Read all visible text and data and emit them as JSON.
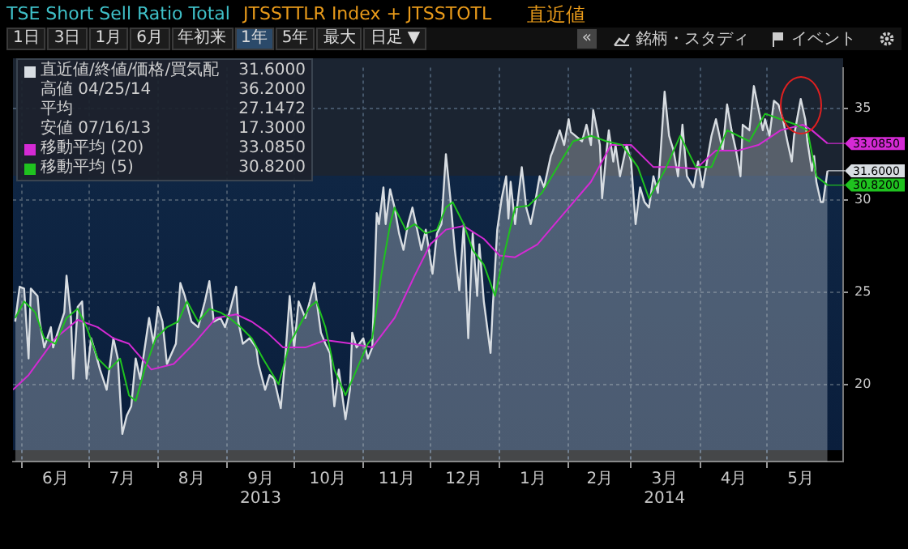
{
  "chart_data": {
    "type": "area",
    "title": "TSE Short Sell Ratio Total",
    "subtitle": "JTSSTTLR Index + JTSSTOTL",
    "annotations": [
      {
        "text": "31.6000",
        "x": "2014-05-28",
        "y": 31.6
      },
      {
        "text": "33.0850",
        "x": "2014-05-28",
        "y": 33.085
      },
      {
        "text": "30.8200",
        "x": "2014-05-28",
        "y": 30.82
      },
      "直近値",
      "高値 04/25/14 36.2000",
      "平均 27.1472",
      "安値 07/16/13 17.3000",
      "1日",
      "3日",
      "1月",
      "6月",
      "年初来",
      "1年",
      "5年",
      "最大",
      "日足 ▼",
      "«",
      "銘柄・スタディ",
      "イベント"
    ],
    "series": [
      {
        "name": "直近値/終値/価格/買気配",
        "color": "#d8dde2",
        "x": [
          "2013-05-29",
          "2013-05-31",
          "2013-06-02",
          "2013-06-04",
          "2013-06-05",
          "2013-06-08",
          "2013-06-09",
          "2013-06-11",
          "2013-06-14",
          "2013-06-15",
          "2013-06-17",
          "2013-06-20",
          "2013-06-21",
          "2013-06-23",
          "2013-06-24",
          "2013-06-26",
          "2013-06-28",
          "2013-06-30",
          "2013-07-02",
          "2013-07-04",
          "2013-07-06",
          "2013-07-09",
          "2013-07-12",
          "2013-07-14",
          "2013-07-16",
          "2013-07-18",
          "2013-07-20",
          "2013-07-22",
          "2013-07-24",
          "2013-07-25",
          "2013-07-28",
          "2013-07-30",
          "2013-08-01",
          "2013-08-03",
          "2013-08-05",
          "2013-08-09",
          "2013-08-11",
          "2013-08-13",
          "2013-08-16",
          "2013-08-19",
          "2013-08-22",
          "2013-08-24",
          "2013-08-26",
          "2013-08-29",
          "2013-08-31",
          "2013-09-02",
          "2013-09-05",
          "2013-09-06",
          "2013-09-08",
          "2013-09-11",
          "2013-09-14",
          "2013-09-15",
          "2013-09-18",
          "2013-09-20",
          "2013-09-22",
          "2013-09-25",
          "2013-09-27",
          "2013-09-29",
          "2013-10-01",
          "2013-10-03",
          "2013-10-06",
          "2013-10-08",
          "2013-10-10",
          "2013-10-13",
          "2013-10-15",
          "2013-10-17",
          "2013-10-19",
          "2013-10-21",
          "2013-10-24",
          "2013-10-26",
          "2013-10-27",
          "2013-10-29",
          "2013-11-01",
          "2013-11-03",
          "2013-11-05",
          "2013-11-07",
          "2013-11-08",
          "2013-11-10",
          "2013-11-11",
          "2013-11-13",
          "2013-11-15",
          "2013-11-17",
          "2013-11-19",
          "2013-11-21",
          "2013-11-23",
          "2013-11-26",
          "2013-11-27",
          "2013-11-29",
          "2013-12-02",
          "2013-12-04",
          "2013-12-06",
          "2013-12-08",
          "2013-12-10",
          "2013-12-12",
          "2013-12-14",
          "2013-12-16",
          "2013-12-18",
          "2013-12-20",
          "2013-12-22",
          "2013-12-23",
          "2013-12-25",
          "2013-12-28",
          "2013-12-29",
          "2013-12-31",
          "2014-01-02",
          "2014-01-04",
          "2014-01-05",
          "2014-01-06",
          "2014-01-08",
          "2014-01-11",
          "2014-01-13",
          "2014-01-15",
          "2014-01-17",
          "2014-01-19",
          "2014-01-21",
          "2014-01-24",
          "2014-01-25",
          "2014-01-28",
          "2014-01-30",
          "2014-02-01",
          "2014-02-02",
          "2014-02-04",
          "2014-02-07",
          "2014-02-09",
          "2014-02-11",
          "2014-02-12",
          "2014-02-15",
          "2014-02-16",
          "2014-02-18",
          "2014-02-19",
          "2014-02-21",
          "2014-02-22",
          "2014-02-24",
          "2014-02-27",
          "2014-03-01",
          "2014-03-03",
          "2014-03-05",
          "2014-03-07",
          "2014-03-09",
          "2014-03-11",
          "2014-03-13",
          "2014-03-16",
          "2014-03-18",
          "2014-03-20",
          "2014-03-22",
          "2014-03-24",
          "2014-03-26",
          "2014-03-29",
          "2014-03-31",
          "2014-04-02",
          "2014-04-04",
          "2014-04-06",
          "2014-04-08",
          "2014-04-11",
          "2014-04-13",
          "2014-04-15",
          "2014-04-17",
          "2014-04-19",
          "2014-04-20",
          "2014-04-23",
          "2014-04-25",
          "2014-04-29",
          "2014-04-30",
          "2014-05-02",
          "2014-05-04",
          "2014-05-06",
          "2014-05-08",
          "2014-05-10",
          "2014-05-12",
          "2014-05-13",
          "2014-05-16",
          "2014-05-18",
          "2014-05-19",
          "2014-05-21",
          "2014-05-22",
          "2014-05-23",
          "2014-05-25",
          "2014-05-26",
          "2014-05-28"
        ],
        "values": [
          23.4,
          25.3,
          25.2,
          21.4,
          25.2,
          24.8,
          23.4,
          22.0,
          23.1,
          22.0,
          22.8,
          23.9,
          25.9,
          23.6,
          20.3,
          24.2,
          24.5,
          20.3,
          22.5,
          21.7,
          20.8,
          19.7,
          22.5,
          21.4,
          17.3,
          18.3,
          18.8,
          21.4,
          20.3,
          21.1,
          23.6,
          22.2,
          24.2,
          23.4,
          21.1,
          22.2,
          25.5,
          24.8,
          23.4,
          23.1,
          24.5,
          25.6,
          23.4,
          23.6,
          23.1,
          23.9,
          25.3,
          23.4,
          22.2,
          22.5,
          22.0,
          21.1,
          19.7,
          20.5,
          20.3,
          18.7,
          21.4,
          24.8,
          22.0,
          24.5,
          23.6,
          24.5,
          25.5,
          22.8,
          22.2,
          21.7,
          18.8,
          20.8,
          18.1,
          19.7,
          22.8,
          22.0,
          22.5,
          21.4,
          22.0,
          29.3,
          28.7,
          30.7,
          28.7,
          30.6,
          29.6,
          28.2,
          27.3,
          28.7,
          29.6,
          27.9,
          27.3,
          28.4,
          26.0,
          28.2,
          28.7,
          32.5,
          30.1,
          27.3,
          25.1,
          28.7,
          22.5,
          28.2,
          24.8,
          27.6,
          24.5,
          21.7,
          24.2,
          28.4,
          30.1,
          31.3,
          29.0,
          31.0,
          28.7,
          31.8,
          29.6,
          28.7,
          29.9,
          31.3,
          30.7,
          32.4,
          32.7,
          33.8,
          33.0,
          34.4,
          33.7,
          33.5,
          33.2,
          34.1,
          33.0,
          34.9,
          33.0,
          30.1,
          32.7,
          33.8,
          32.1,
          33.0,
          31.3,
          33.0,
          32.1,
          28.7,
          30.7,
          29.9,
          29.6,
          31.3,
          30.4,
          35.9,
          33.5,
          32.7,
          31.3,
          34.1,
          31.3,
          30.7,
          32.1,
          30.7,
          32.1,
          33.5,
          34.4,
          32.7,
          35.2,
          33.8,
          32.7,
          31.3,
          34.1,
          33.8,
          36.2,
          33.8,
          34.4,
          33.5,
          35.4,
          35.2,
          34.4,
          33.2,
          32.1,
          33.5,
          35.5,
          34.4,
          33.2,
          31.6,
          32.4,
          31.0,
          29.9,
          29.9,
          31.6
        ]
      },
      {
        "name": "移動平均 (20)",
        "color": "#d42ad4",
        "type": "line",
        "x": [
          "2013-05-28",
          "2013-06-04",
          "2013-06-16",
          "2013-06-26",
          "2013-07-05",
          "2013-07-12",
          "2013-07-19",
          "2013-07-29",
          "2013-08-08",
          "2013-08-17",
          "2013-08-27",
          "2013-09-05",
          "2013-09-12",
          "2013-09-19",
          "2013-09-26",
          "2013-10-06",
          "2013-10-15",
          "2013-10-27",
          "2013-11-05",
          "2013-11-15",
          "2013-11-24",
          "2013-12-01",
          "2013-12-08",
          "2013-12-16",
          "2013-12-25",
          "2014-01-01",
          "2014-01-08",
          "2014-01-18",
          "2014-01-30",
          "2014-02-11",
          "2014-02-20",
          "2014-03-01",
          "2014-03-11",
          "2014-03-20",
          "2014-03-30",
          "2014-04-08",
          "2014-04-18",
          "2014-04-27",
          "2014-05-07",
          "2014-05-17",
          "2014-05-21",
          "2014-05-28"
        ],
        "values": [
          19.7,
          20.5,
          22.5,
          23.5,
          23.1,
          22.5,
          22.2,
          20.8,
          21.1,
          22.2,
          23.6,
          23.8,
          23.4,
          22.8,
          22.0,
          22.0,
          22.4,
          22.2,
          22.0,
          23.6,
          25.9,
          27.6,
          28.4,
          28.6,
          27.9,
          27.0,
          26.9,
          27.6,
          29.3,
          31.0,
          33.0,
          33.0,
          31.8,
          31.8,
          31.7,
          32.7,
          32.7,
          33.0,
          33.8,
          34.1,
          33.8,
          33.085
        ]
      },
      {
        "name": "移動平均 (5)",
        "color": "#1fc21f",
        "type": "line",
        "x": [
          "2013-05-29",
          "2013-06-02",
          "2013-06-07",
          "2013-06-11",
          "2013-06-16",
          "2013-06-21",
          "2013-06-26",
          "2013-06-30",
          "2013-07-05",
          "2013-07-10",
          "2013-07-15",
          "2013-07-19",
          "2013-07-22",
          "2013-07-26",
          "2013-07-31",
          "2013-08-05",
          "2013-08-10",
          "2013-08-14",
          "2013-08-19",
          "2013-08-24",
          "2013-08-29",
          "2013-09-02",
          "2013-09-07",
          "2013-09-12",
          "2013-09-17",
          "2013-09-24",
          "2013-09-29",
          "2013-10-03",
          "2013-10-08",
          "2013-10-11",
          "2013-10-15",
          "2013-10-19",
          "2013-10-24",
          "2013-10-29",
          "2013-11-03",
          "2013-11-05",
          "2013-11-09",
          "2013-11-13",
          "2013-11-15",
          "2013-11-20",
          "2013-11-24",
          "2013-11-29",
          "2013-12-04",
          "2013-12-08",
          "2013-12-11",
          "2013-12-16",
          "2013-12-20",
          "2013-12-25",
          "2013-12-30",
          "2014-01-02",
          "2014-01-08",
          "2014-01-14",
          "2014-01-20",
          "2014-01-27",
          "2014-02-03",
          "2014-02-11",
          "2014-02-18",
          "2014-02-25",
          "2014-03-04",
          "2014-03-09",
          "2014-03-16",
          "2014-03-23",
          "2014-03-30",
          "2014-04-06",
          "2014-04-13",
          "2014-04-23",
          "2014-04-30",
          "2014-05-07",
          "2014-05-14",
          "2014-05-19",
          "2014-05-23",
          "2014-05-28"
        ],
        "values": [
          23.6,
          24.5,
          23.9,
          22.5,
          22.2,
          23.6,
          24.1,
          23.1,
          21.4,
          20.8,
          21.4,
          19.4,
          19.1,
          20.8,
          22.5,
          23.1,
          23.4,
          24.5,
          23.4,
          24.1,
          23.9,
          23.6,
          23.1,
          22.5,
          21.4,
          20.0,
          22.2,
          23.1,
          24.2,
          24.5,
          23.1,
          20.8,
          19.4,
          20.8,
          22.2,
          22.5,
          25.9,
          28.7,
          29.6,
          28.4,
          28.7,
          28.2,
          28.4,
          29.6,
          29.9,
          28.7,
          27.3,
          26.5,
          24.8,
          26.5,
          29.6,
          29.7,
          30.4,
          31.8,
          33.2,
          33.5,
          33.2,
          33.0,
          31.8,
          30.1,
          31.6,
          33.5,
          31.8,
          31.8,
          33.8,
          33.2,
          34.7,
          34.4,
          34.1,
          33.8,
          31.3,
          30.82
        ]
      }
    ],
    "xlim": [
      "2013-05-28",
      "2014-06-04"
    ],
    "xticks": [
      {
        "value": "2013-06-01",
        "label": null
      },
      {
        "value": "2013-06-16",
        "label": "6月"
      },
      {
        "value": "2013-07-01",
        "label": null
      },
      {
        "value": "2013-07-16",
        "label": "7月"
      },
      {
        "value": "2013-08-01",
        "label": null
      },
      {
        "value": "2013-08-16",
        "label": "8月"
      },
      {
        "value": "2013-09-01",
        "label": null
      },
      {
        "value": "2013-09-16",
        "label": "9月\n2013"
      },
      {
        "value": "2013-10-01",
        "label": null
      },
      {
        "value": "2013-10-16",
        "label": "10月"
      },
      {
        "value": "2013-11-01",
        "label": null
      },
      {
        "value": "2013-11-16",
        "label": "11月"
      },
      {
        "value": "2013-12-01",
        "label": null
      },
      {
        "value": "2013-12-16",
        "label": "12月"
      },
      {
        "value": "2014-01-01",
        "label": null
      },
      {
        "value": "2014-01-16",
        "label": "1月"
      },
      {
        "value": "2014-02-01",
        "label": null
      },
      {
        "value": "2014-02-15",
        "label": "2月"
      },
      {
        "value": "2014-03-01",
        "label": null
      },
      {
        "value": "2014-03-16",
        "label": "3月\n2014"
      },
      {
        "value": "2014-04-01",
        "label": null
      },
      {
        "value": "2014-04-16",
        "label": "4月"
      },
      {
        "value": "2014-05-01",
        "label": null
      },
      {
        "value": "2014-05-16",
        "label": "5月"
      }
    ],
    "ylim": [
      15.8,
      37.2
    ],
    "yticks": [
      20,
      25,
      30,
      35
    ],
    "grid": true,
    "legend": "top left"
  }
}
